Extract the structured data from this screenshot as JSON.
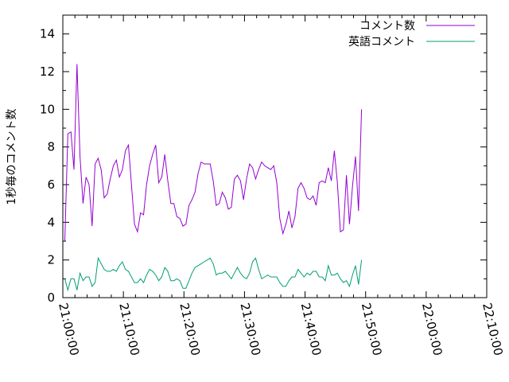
{
  "chart_data": {
    "type": "line",
    "ylabel": "1秒毎のコメント数",
    "xlabel": "",
    "title": "",
    "ylim": [
      0,
      15
    ],
    "xlim": [
      "21:00:00",
      "22:10:00"
    ],
    "y_ticks": [
      0,
      2,
      4,
      6,
      8,
      10,
      12,
      14
    ],
    "x_ticks": [
      "21:00:00",
      "21:10:00",
      "21:20:00",
      "21:30:00",
      "21:40:00",
      "21:50:00",
      "22:00:00",
      "22:10:00"
    ],
    "grid": false,
    "legend_position": "top-right",
    "series": [
      {
        "name": "コメント数",
        "color": "#9400d3",
        "points": [
          [
            "21:00:20",
            3.0
          ],
          [
            "21:00:50",
            8.7
          ],
          [
            "21:01:20",
            8.8
          ],
          [
            "21:01:50",
            6.8
          ],
          [
            "21:02:20",
            12.4
          ],
          [
            "21:02:50",
            7.5
          ],
          [
            "21:03:20",
            5.0
          ],
          [
            "21:03:50",
            6.4
          ],
          [
            "21:04:20",
            6.0
          ],
          [
            "21:04:50",
            3.8
          ],
          [
            "21:05:20",
            7.1
          ],
          [
            "21:05:50",
            7.4
          ],
          [
            "21:06:20",
            6.8
          ],
          [
            "21:06:50",
            5.3
          ],
          [
            "21:07:20",
            5.5
          ],
          [
            "21:07:50",
            6.3
          ],
          [
            "21:08:20",
            7.0
          ],
          [
            "21:08:50",
            7.3
          ],
          [
            "21:09:20",
            6.4
          ],
          [
            "21:09:50",
            6.8
          ],
          [
            "21:10:20",
            7.8
          ],
          [
            "21:10:50",
            8.1
          ],
          [
            "21:11:20",
            6.0
          ],
          [
            "21:11:50",
            3.9
          ],
          [
            "21:12:20",
            3.5
          ],
          [
            "21:12:50",
            4.5
          ],
          [
            "21:13:20",
            4.4
          ],
          [
            "21:13:50",
            6.0
          ],
          [
            "21:14:20",
            7.0
          ],
          [
            "21:14:50",
            7.6
          ],
          [
            "21:15:20",
            8.1
          ],
          [
            "21:15:50",
            6.1
          ],
          [
            "21:16:20",
            6.4
          ],
          [
            "21:16:50",
            7.6
          ],
          [
            "21:17:20",
            6.2
          ],
          [
            "21:17:50",
            5.0
          ],
          [
            "21:18:20",
            5.0
          ],
          [
            "21:18:50",
            4.3
          ],
          [
            "21:19:20",
            4.2
          ],
          [
            "21:19:50",
            3.8
          ],
          [
            "21:20:20",
            3.9
          ],
          [
            "21:20:50",
            4.9
          ],
          [
            "21:21:20",
            5.2
          ],
          [
            "21:21:50",
            5.6
          ],
          [
            "21:22:20",
            6.6
          ],
          [
            "21:22:50",
            7.2
          ],
          [
            "21:23:20",
            7.1
          ],
          [
            "21:23:50",
            7.1
          ],
          [
            "21:24:20",
            7.1
          ],
          [
            "21:24:50",
            6.2
          ],
          [
            "21:25:20",
            4.9
          ],
          [
            "21:25:50",
            5.0
          ],
          [
            "21:26:20",
            5.6
          ],
          [
            "21:26:50",
            5.3
          ],
          [
            "21:27:20",
            4.7
          ],
          [
            "21:27:50",
            4.8
          ],
          [
            "21:28:20",
            6.3
          ],
          [
            "21:28:50",
            6.5
          ],
          [
            "21:29:20",
            6.2
          ],
          [
            "21:29:50",
            5.2
          ],
          [
            "21:30:20",
            6.3
          ],
          [
            "21:30:50",
            7.1
          ],
          [
            "21:31:20",
            6.9
          ],
          [
            "21:31:50",
            6.3
          ],
          [
            "21:32:20",
            6.8
          ],
          [
            "21:32:50",
            7.2
          ],
          [
            "21:33:20",
            7.0
          ],
          [
            "21:33:50",
            6.9
          ],
          [
            "21:34:20",
            6.8
          ],
          [
            "21:34:50",
            7.0
          ],
          [
            "21:35:20",
            6.1
          ],
          [
            "21:35:50",
            4.2
          ],
          [
            "21:36:20",
            3.4
          ],
          [
            "21:36:50",
            3.9
          ],
          [
            "21:37:20",
            4.6
          ],
          [
            "21:37:50",
            3.7
          ],
          [
            "21:38:20",
            4.3
          ],
          [
            "21:38:50",
            5.8
          ],
          [
            "21:39:20",
            6.1
          ],
          [
            "21:39:50",
            5.8
          ],
          [
            "21:40:20",
            5.3
          ],
          [
            "21:40:50",
            5.2
          ],
          [
            "21:41:20",
            5.4
          ],
          [
            "21:41:50",
            4.9
          ],
          [
            "21:42:20",
            6.1
          ],
          [
            "21:42:50",
            6.2
          ],
          [
            "21:43:20",
            6.1
          ],
          [
            "21:43:50",
            6.9
          ],
          [
            "21:44:20",
            6.2
          ],
          [
            "21:44:50",
            7.8
          ],
          [
            "21:45:20",
            6.1
          ],
          [
            "21:45:50",
            3.5
          ],
          [
            "21:46:20",
            3.6
          ],
          [
            "21:46:50",
            6.5
          ],
          [
            "21:47:20",
            3.9
          ],
          [
            "21:47:50",
            5.9
          ],
          [
            "21:48:20",
            7.5
          ],
          [
            "21:48:50",
            4.6
          ],
          [
            "21:49:20",
            10.0
          ]
        ]
      },
      {
        "name": "英語コメント",
        "color": "#009e73",
        "points": [
          [
            "21:00:20",
            1.0
          ],
          [
            "21:00:50",
            0.4
          ],
          [
            "21:01:20",
            1.0
          ],
          [
            "21:01:50",
            1.0
          ],
          [
            "21:02:20",
            0.4
          ],
          [
            "21:02:50",
            1.3
          ],
          [
            "21:03:20",
            0.9
          ],
          [
            "21:03:50",
            1.1
          ],
          [
            "21:04:20",
            1.1
          ],
          [
            "21:04:50",
            0.6
          ],
          [
            "21:05:20",
            0.8
          ],
          [
            "21:05:50",
            2.1
          ],
          [
            "21:06:20",
            1.8
          ],
          [
            "21:06:50",
            1.5
          ],
          [
            "21:07:20",
            1.4
          ],
          [
            "21:07:50",
            1.4
          ],
          [
            "21:08:20",
            1.5
          ],
          [
            "21:08:50",
            1.4
          ],
          [
            "21:09:20",
            1.7
          ],
          [
            "21:09:50",
            1.9
          ],
          [
            "21:10:20",
            1.5
          ],
          [
            "21:10:50",
            1.4
          ],
          [
            "21:11:20",
            1.1
          ],
          [
            "21:11:50",
            0.8
          ],
          [
            "21:12:20",
            0.8
          ],
          [
            "21:12:50",
            1.0
          ],
          [
            "21:13:20",
            0.8
          ],
          [
            "21:13:50",
            1.2
          ],
          [
            "21:14:20",
            1.5
          ],
          [
            "21:14:50",
            1.4
          ],
          [
            "21:15:20",
            1.2
          ],
          [
            "21:15:50",
            0.9
          ],
          [
            "21:16:20",
            1.1
          ],
          [
            "21:16:50",
            1.6
          ],
          [
            "21:17:20",
            1.4
          ],
          [
            "21:17:50",
            0.9
          ],
          [
            "21:18:20",
            0.9
          ],
          [
            "21:18:50",
            1.0
          ],
          [
            "21:19:20",
            0.9
          ],
          [
            "21:19:50",
            0.5
          ],
          [
            "21:20:20",
            0.5
          ],
          [
            "21:20:50",
            0.9
          ],
          [
            "21:21:20",
            1.3
          ],
          [
            "21:21:50",
            1.6
          ],
          [
            "21:22:20",
            1.7
          ],
          [
            "21:22:50",
            1.8
          ],
          [
            "21:23:20",
            1.9
          ],
          [
            "21:23:50",
            2.0
          ],
          [
            "21:24:20",
            2.1
          ],
          [
            "21:24:50",
            1.8
          ],
          [
            "21:25:20",
            1.2
          ],
          [
            "21:25:50",
            1.3
          ],
          [
            "21:26:20",
            1.3
          ],
          [
            "21:26:50",
            1.4
          ],
          [
            "21:27:20",
            1.2
          ],
          [
            "21:27:50",
            1.0
          ],
          [
            "21:28:20",
            1.3
          ],
          [
            "21:28:50",
            1.6
          ],
          [
            "21:29:20",
            1.3
          ],
          [
            "21:29:50",
            1.1
          ],
          [
            "21:30:20",
            1.0
          ],
          [
            "21:30:50",
            1.3
          ],
          [
            "21:31:20",
            1.9
          ],
          [
            "21:31:50",
            2.1
          ],
          [
            "21:32:20",
            1.5
          ],
          [
            "21:32:50",
            1.0
          ],
          [
            "21:33:20",
            1.1
          ],
          [
            "21:33:50",
            1.2
          ],
          [
            "21:34:20",
            1.1
          ],
          [
            "21:34:50",
            1.1
          ],
          [
            "21:35:20",
            1.1
          ],
          [
            "21:35:50",
            0.8
          ],
          [
            "21:36:20",
            0.6
          ],
          [
            "21:36:50",
            0.6
          ],
          [
            "21:37:20",
            0.9
          ],
          [
            "21:37:50",
            1.1
          ],
          [
            "21:38:20",
            1.1
          ],
          [
            "21:38:50",
            1.5
          ],
          [
            "21:39:20",
            1.3
          ],
          [
            "21:39:50",
            1.1
          ],
          [
            "21:40:20",
            1.3
          ],
          [
            "21:40:50",
            1.2
          ],
          [
            "21:41:20",
            1.4
          ],
          [
            "21:41:50",
            1.4
          ],
          [
            "21:42:20",
            1.1
          ],
          [
            "21:42:50",
            1.1
          ],
          [
            "21:43:20",
            0.9
          ],
          [
            "21:43:50",
            1.7
          ],
          [
            "21:44:20",
            1.2
          ],
          [
            "21:44:50",
            1.2
          ],
          [
            "21:45:20",
            1.3
          ],
          [
            "21:45:50",
            1.0
          ],
          [
            "21:46:20",
            0.8
          ],
          [
            "21:46:50",
            0.9
          ],
          [
            "21:47:20",
            0.6
          ],
          [
            "21:47:50",
            1.2
          ],
          [
            "21:48:20",
            1.7
          ],
          [
            "21:48:50",
            0.7
          ],
          [
            "21:49:20",
            2.0
          ]
        ]
      }
    ]
  }
}
